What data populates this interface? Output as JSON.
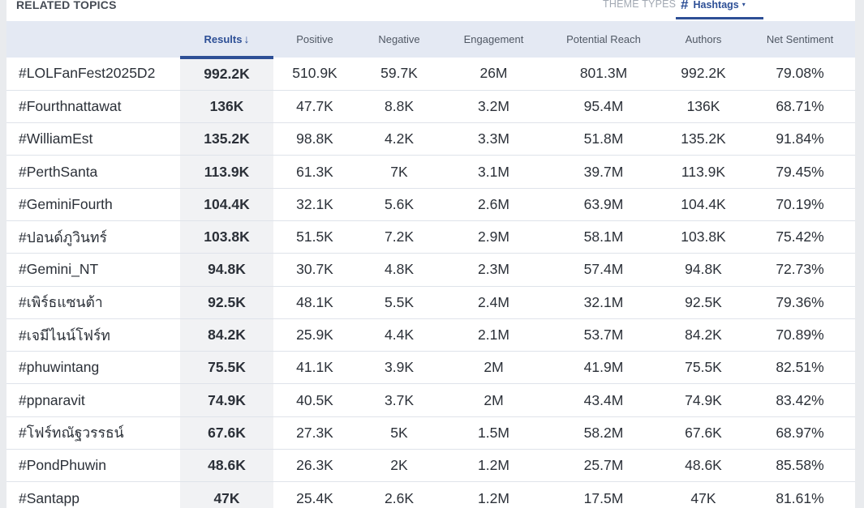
{
  "section_title": "RELATED TOPICS",
  "theme_types_label": "THEME TYPES",
  "hashtags_tab": {
    "icon": "#",
    "label": "Hashtags",
    "caret": "▾"
  },
  "columns": {
    "topic": "",
    "results": "Results",
    "positive": "Positive",
    "negative": "Negative",
    "engagement": "Engagement",
    "reach": "Potential Reach",
    "authors": "Authors",
    "net": "Net Sentiment"
  },
  "sort_arrow": "↓",
  "rows": [
    {
      "tag": "#LOLFanFest2025D2",
      "results": "992.2K",
      "positive": "510.9K",
      "negative": "59.7K",
      "engagement": "26M",
      "reach": "801.3M",
      "authors": "992.2K",
      "net": "79.08%"
    },
    {
      "tag": "#Fourthnattawat",
      "results": "136K",
      "positive": "47.7K",
      "negative": "8.8K",
      "engagement": "3.2M",
      "reach": "95.4M",
      "authors": "136K",
      "net": "68.71%"
    },
    {
      "tag": "#WilliamEst",
      "results": "135.2K",
      "positive": "98.8K",
      "negative": "4.2K",
      "engagement": "3.3M",
      "reach": "51.8M",
      "authors": "135.2K",
      "net": "91.84%"
    },
    {
      "tag": "#PerthSanta",
      "results": "113.9K",
      "positive": "61.3K",
      "negative": "7K",
      "engagement": "3.1M",
      "reach": "39.7M",
      "authors": "113.9K",
      "net": "79.45%"
    },
    {
      "tag": "#GeminiFourth",
      "results": "104.4K",
      "positive": "32.1K",
      "negative": "5.6K",
      "engagement": "2.6M",
      "reach": "63.9M",
      "authors": "104.4K",
      "net": "70.19%"
    },
    {
      "tag": "#ปอนด์ภูวินทร์",
      "results": "103.8K",
      "positive": "51.5K",
      "negative": "7.2K",
      "engagement": "2.9M",
      "reach": "58.1M",
      "authors": "103.8K",
      "net": "75.42%"
    },
    {
      "tag": "#Gemini_NT",
      "results": "94.8K",
      "positive": "30.7K",
      "negative": "4.8K",
      "engagement": "2.3M",
      "reach": "57.4M",
      "authors": "94.8K",
      "net": "72.73%"
    },
    {
      "tag": "#เพิร์ธแซนต้า",
      "results": "92.5K",
      "positive": "48.1K",
      "negative": "5.5K",
      "engagement": "2.4M",
      "reach": "32.1M",
      "authors": "92.5K",
      "net": "79.36%"
    },
    {
      "tag": "#เจมีไนน์โฟร์ท",
      "results": "84.2K",
      "positive": "25.9K",
      "negative": "4.4K",
      "engagement": "2.1M",
      "reach": "53.7M",
      "authors": "84.2K",
      "net": "70.89%"
    },
    {
      "tag": "#phuwintang",
      "results": "75.5K",
      "positive": "41.1K",
      "negative": "3.9K",
      "engagement": "2M",
      "reach": "41.9M",
      "authors": "75.5K",
      "net": "82.51%"
    },
    {
      "tag": "#ppnaravit",
      "results": "74.9K",
      "positive": "40.5K",
      "negative": "3.7K",
      "engagement": "2M",
      "reach": "43.4M",
      "authors": "74.9K",
      "net": "83.42%"
    },
    {
      "tag": "#โฟร์ทณัฐวรรธน์",
      "results": "67.6K",
      "positive": "27.3K",
      "negative": "5K",
      "engagement": "1.5M",
      "reach": "58.2M",
      "authors": "67.6K",
      "net": "68.97%"
    },
    {
      "tag": "#PondPhuwin",
      "results": "48.6K",
      "positive": "26.3K",
      "negative": "2K",
      "engagement": "1.2M",
      "reach": "25.7M",
      "authors": "48.6K",
      "net": "85.58%"
    },
    {
      "tag": "#Santapp",
      "results": "47K",
      "positive": "25.4K",
      "negative": "2.6K",
      "engagement": "1.2M",
      "reach": "17.5M",
      "authors": "47K",
      "net": "81.61%"
    }
  ]
}
